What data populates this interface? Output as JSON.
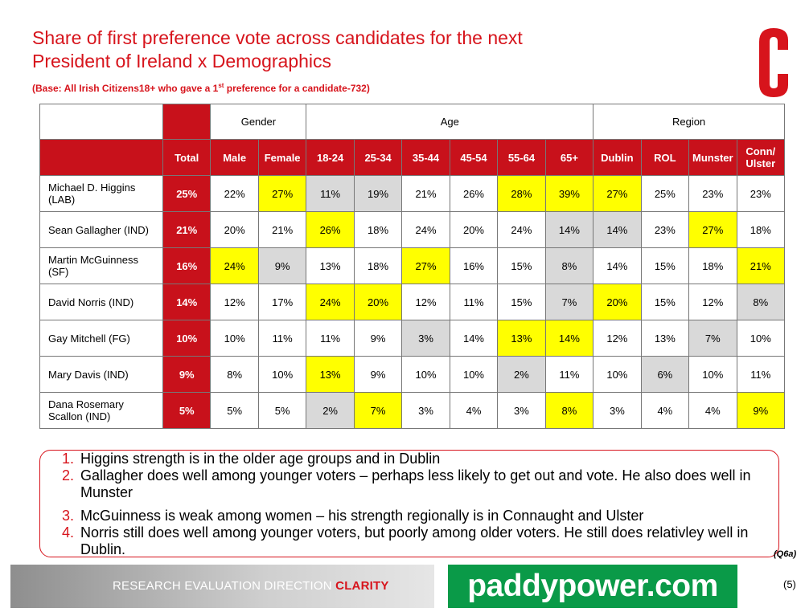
{
  "header": {
    "title_lines": [
      "Share of first preference vote across candidates for the next",
      "President of Ireland x Demographics"
    ],
    "base": [
      "(Base: All Irish Citizens18+ who gave a 1",
      "st",
      " preference for a candidate-732)"
    ]
  },
  "table": {
    "groups": [
      {
        "label": "Gender",
        "span": 2
      },
      {
        "label": "Age",
        "span": 6
      },
      {
        "label": "Region",
        "span": 4
      }
    ],
    "columns": [
      "Total",
      "Male",
      "Female",
      "18-24",
      "25-34",
      "35-44",
      "45-54",
      "55-64",
      "65+",
      "Dublin",
      "ROL",
      "Munster",
      "Conn/\nUlster"
    ],
    "rows": [
      {
        "name": "Michael D. Higgins\n(LAB)",
        "cells": [
          "25%",
          "22%",
          "27%",
          "11%",
          "19%",
          "21%",
          "26%",
          "28%",
          "39%",
          "27%",
          "25%",
          "23%",
          "23%"
        ],
        "highlights": [
          null,
          null,
          "#ffff00",
          "#d9d9d9",
          "#d9d9d9",
          null,
          null,
          "#ffff00",
          "#ffff00",
          "#ffff00",
          null,
          null,
          null
        ]
      },
      {
        "name": "Sean Gallagher (IND)",
        "cells": [
          "21%",
          "20%",
          "21%",
          "26%",
          "18%",
          "24%",
          "20%",
          "24%",
          "14%",
          "14%",
          "23%",
          "27%",
          "18%"
        ],
        "highlights": [
          null,
          null,
          null,
          "#ffff00",
          null,
          null,
          null,
          null,
          "#d9d9d9",
          "#d9d9d9",
          null,
          "#ffff00",
          null
        ]
      },
      {
        "name": "Martin McGuinness\n(SF)",
        "cells": [
          "16%",
          "24%",
          "9%",
          "13%",
          "18%",
          "27%",
          "16%",
          "15%",
          "8%",
          "14%",
          "15%",
          "18%",
          "21%"
        ],
        "highlights": [
          null,
          "#ffff00",
          "#d9d9d9",
          null,
          null,
          "#ffff00",
          null,
          null,
          "#d9d9d9",
          null,
          null,
          null,
          "#ffff00"
        ]
      },
      {
        "name": "David Norris (IND)",
        "cells": [
          "14%",
          "12%",
          "17%",
          "24%",
          "20%",
          "12%",
          "11%",
          "15%",
          "7%",
          "20%",
          "15%",
          "12%",
          "8%"
        ],
        "highlights": [
          null,
          null,
          null,
          "#ffff00",
          "#ffff00",
          null,
          null,
          null,
          "#d9d9d9",
          "#ffff00",
          null,
          null,
          "#d9d9d9"
        ]
      },
      {
        "name": "Gay Mitchell (FG)",
        "cells": [
          "10%",
          "10%",
          "11%",
          "11%",
          "9%",
          "3%",
          "14%",
          "13%",
          "14%",
          "12%",
          "13%",
          "7%",
          "10%"
        ],
        "highlights": [
          null,
          null,
          null,
          null,
          null,
          "#d9d9d9",
          null,
          "#ffff00",
          "#ffff00",
          null,
          null,
          "#d9d9d9",
          null
        ]
      },
      {
        "name": "Mary Davis (IND)",
        "cells": [
          "9%",
          "8%",
          "10%",
          "13%",
          "9%",
          "10%",
          "10%",
          "2%",
          "11%",
          "10%",
          "6%",
          "10%",
          "11%"
        ],
        "highlights": [
          null,
          null,
          null,
          "#ffff00",
          null,
          null,
          null,
          "#d9d9d9",
          null,
          null,
          "#d9d9d9",
          null,
          null
        ]
      },
      {
        "name": "Dana Rosemary\nScallon (IND)",
        "cells": [
          "5%",
          "5%",
          "5%",
          "2%",
          "7%",
          "3%",
          "4%",
          "3%",
          "8%",
          "3%",
          "4%",
          "4%",
          "9%"
        ],
        "highlights": [
          null,
          null,
          null,
          "#d9d9d9",
          "#ffff00",
          null,
          null,
          null,
          "#ffff00",
          null,
          null,
          null,
          "#ffff00"
        ]
      }
    ]
  },
  "notes": [
    {
      "number": "1.",
      "text": "Higgins strength is in the older age groups and in Dublin"
    },
    {
      "number": "2.",
      "text": "Gallagher does well among younger voters – perhaps less likely to get out and vote.  He also does well in Munster"
    },
    {
      "number": "3.",
      "text": "McGuinness is weak among women – his strength regionally is in Connaught and Ulster"
    },
    {
      "number": "4.",
      "text": "Norris still does well among younger voters, but poorly among older voters.  He still does relativley well in Dublin."
    }
  ],
  "footer": {
    "question": "(Q6a)",
    "tagline": [
      "RESEARCH EVALUATION DIRECTION ",
      "CLARITY"
    ],
    "sponsor": "paddypower.com",
    "page": "(5)"
  }
}
